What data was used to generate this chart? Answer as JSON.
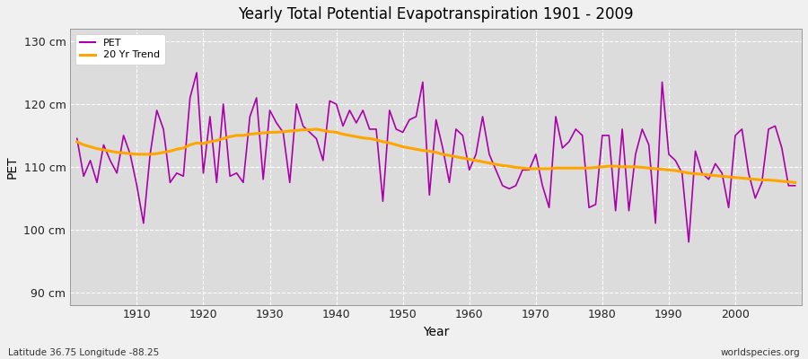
{
  "title": "Yearly Total Potential Evapotranspiration 1901 - 2009",
  "ylabel": "PET",
  "xlabel": "Year",
  "footer_left": "Latitude 36.75 Longitude -88.25",
  "footer_right": "worldspecies.org",
  "legend_pet": "PET",
  "legend_trend": "20 Yr Trend",
  "pet_color": "#aa00aa",
  "trend_color": "#ffa500",
  "bg_color": "#f0f0f0",
  "plot_bg_color": "#dcdcdc",
  "ylim": [
    88,
    132
  ],
  "yticks": [
    90,
    100,
    110,
    120,
    130
  ],
  "ytick_labels": [
    "90 cm",
    "100 cm",
    "110 cm",
    "120 cm",
    "130 cm"
  ],
  "years": [
    1901,
    1902,
    1903,
    1904,
    1905,
    1906,
    1907,
    1908,
    1909,
    1910,
    1911,
    1912,
    1913,
    1914,
    1915,
    1916,
    1917,
    1918,
    1919,
    1920,
    1921,
    1922,
    1923,
    1924,
    1925,
    1926,
    1927,
    1928,
    1929,
    1930,
    1931,
    1932,
    1933,
    1934,
    1935,
    1936,
    1937,
    1938,
    1939,
    1940,
    1941,
    1942,
    1943,
    1944,
    1945,
    1946,
    1947,
    1948,
    1949,
    1950,
    1951,
    1952,
    1953,
    1954,
    1955,
    1956,
    1957,
    1958,
    1959,
    1960,
    1961,
    1962,
    1963,
    1964,
    1965,
    1966,
    1967,
    1968,
    1969,
    1970,
    1971,
    1972,
    1973,
    1974,
    1975,
    1976,
    1977,
    1978,
    1979,
    1980,
    1981,
    1982,
    1983,
    1984,
    1985,
    1986,
    1987,
    1988,
    1989,
    1990,
    1991,
    1992,
    1993,
    1994,
    1995,
    1996,
    1997,
    1998,
    1999,
    2000,
    2001,
    2002,
    2003,
    2004,
    2005,
    2006,
    2007,
    2008,
    2009
  ],
  "pet": [
    114.5,
    108.5,
    111.0,
    107.5,
    113.5,
    111.0,
    109.0,
    115.0,
    112.0,
    107.0,
    101.0,
    112.0,
    119.0,
    116.0,
    107.5,
    109.0,
    108.5,
    121.0,
    125.0,
    109.0,
    118.0,
    107.5,
    120.0,
    108.5,
    109.0,
    107.5,
    118.0,
    121.0,
    108.0,
    119.0,
    117.0,
    115.5,
    107.5,
    120.0,
    116.5,
    115.5,
    114.5,
    111.0,
    120.5,
    120.0,
    116.5,
    119.0,
    117.0,
    119.0,
    116.0,
    116.0,
    104.5,
    119.0,
    116.0,
    115.5,
    117.5,
    118.0,
    123.5,
    105.5,
    117.5,
    113.0,
    107.5,
    116.0,
    115.0,
    109.5,
    112.0,
    118.0,
    112.0,
    109.5,
    107.0,
    106.5,
    107.0,
    109.5,
    109.5,
    112.0,
    107.0,
    103.5,
    118.0,
    113.0,
    114.0,
    116.0,
    115.0,
    103.5,
    104.0,
    115.0,
    115.0,
    103.0,
    116.0,
    103.0,
    112.0,
    116.0,
    113.5,
    101.0,
    123.5,
    112.0,
    111.0,
    109.0,
    98.0,
    112.5,
    109.0,
    108.0,
    110.5,
    109.0,
    103.5,
    115.0,
    116.0,
    109.0,
    105.0,
    107.5,
    116.0,
    116.5,
    113.0,
    107.0,
    107.0
  ],
  "trend": [
    114.0,
    113.5,
    113.2,
    112.9,
    112.7,
    112.5,
    112.3,
    112.2,
    112.1,
    112.0,
    112.0,
    112.0,
    112.1,
    112.3,
    112.5,
    112.8,
    113.0,
    113.5,
    113.8,
    113.7,
    114.0,
    114.2,
    114.5,
    114.8,
    115.0,
    115.0,
    115.2,
    115.3,
    115.4,
    115.5,
    115.5,
    115.6,
    115.7,
    115.8,
    115.9,
    115.9,
    116.0,
    115.8,
    115.6,
    115.5,
    115.2,
    115.0,
    114.8,
    114.6,
    114.5,
    114.3,
    114.0,
    113.8,
    113.5,
    113.2,
    113.0,
    112.8,
    112.6,
    112.5,
    112.3,
    112.0,
    111.8,
    111.6,
    111.4,
    111.2,
    111.0,
    110.8,
    110.6,
    110.4,
    110.2,
    110.1,
    109.9,
    109.8,
    109.7,
    109.7,
    109.7,
    109.7,
    109.8,
    109.8,
    109.8,
    109.8,
    109.8,
    109.8,
    109.9,
    110.0,
    110.1,
    110.1,
    110.0,
    110.0,
    110.0,
    109.9,
    109.8,
    109.7,
    109.6,
    109.5,
    109.4,
    109.2,
    109.0,
    108.9,
    108.8,
    108.7,
    108.6,
    108.5,
    108.4,
    108.3,
    108.2,
    108.1,
    108.0,
    107.9,
    107.9,
    107.8,
    107.7,
    107.6,
    107.5
  ]
}
